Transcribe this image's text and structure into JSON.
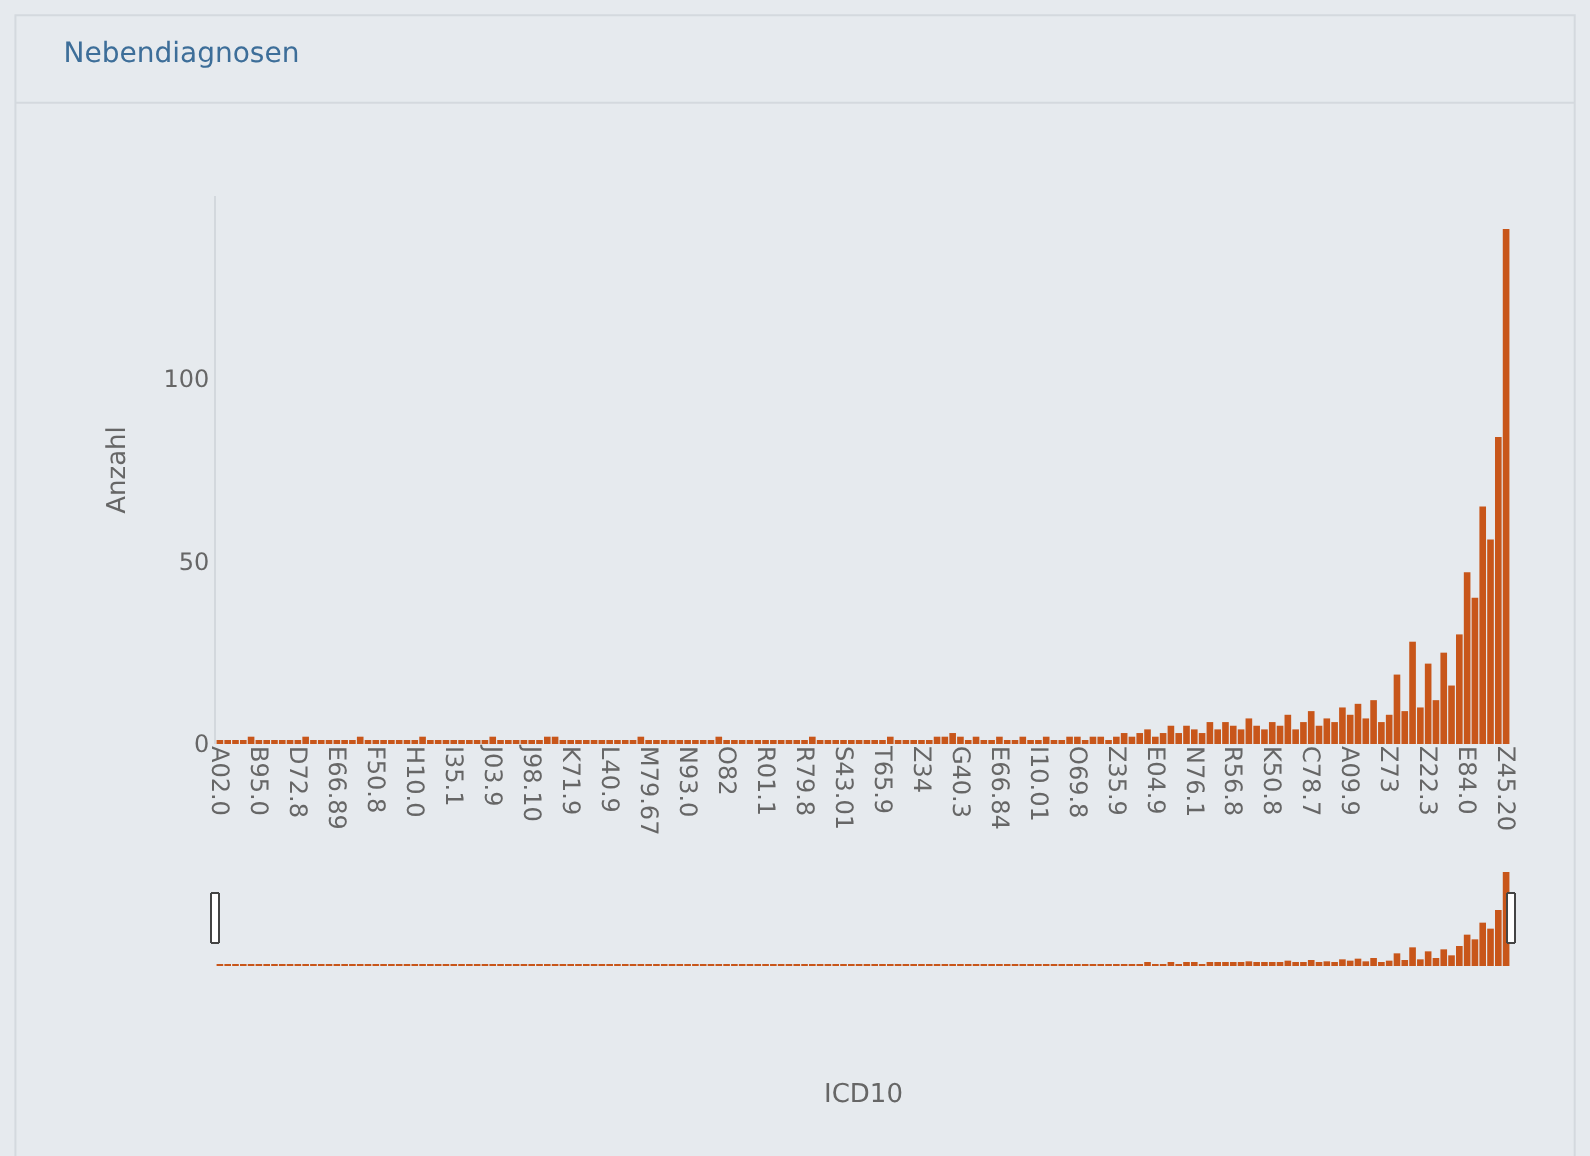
{
  "chart_data": {
    "type": "bar",
    "title": "Nebendiagnosen",
    "annotations": [
      "ICD10"
    ],
    "ylabel": "Anzahl",
    "categories": [
      "A02.0",
      null,
      null,
      null,
      null,
      "B95.0",
      null,
      null,
      null,
      null,
      "D72.8",
      null,
      null,
      null,
      null,
      "E66.89",
      null,
      null,
      null,
      null,
      "F50.8",
      null,
      null,
      null,
      null,
      "H10.0",
      null,
      null,
      null,
      null,
      "I35.1",
      null,
      null,
      null,
      null,
      "J03.9",
      null,
      null,
      null,
      null,
      "J98.10",
      null,
      null,
      null,
      null,
      "K71.9",
      null,
      null,
      null,
      null,
      "L40.9",
      null,
      null,
      null,
      null,
      "M79.67",
      null,
      null,
      null,
      null,
      "N93.0",
      null,
      null,
      null,
      null,
      "O82",
      null,
      null,
      null,
      null,
      "R01.1",
      null,
      null,
      null,
      null,
      "R79.8",
      null,
      null,
      null,
      null,
      "S43.01",
      null,
      null,
      null,
      null,
      "T65.9",
      null,
      null,
      null,
      null,
      "Z34",
      null,
      null,
      null,
      null,
      "G40.3",
      null,
      null,
      null,
      null,
      "E66.84",
      null,
      null,
      null,
      null,
      "I10.01",
      null,
      null,
      null,
      null,
      "O69.8",
      null,
      null,
      null,
      null,
      "Z35.9",
      null,
      null,
      null,
      null,
      "E04.9",
      null,
      null,
      null,
      null,
      "N76.1",
      null,
      null,
      null,
      null,
      "R56.8",
      null,
      null,
      null,
      null,
      "K50.8",
      null,
      null,
      null,
      null,
      "C78.7",
      null,
      null,
      null,
      null,
      "A09.9",
      null,
      null,
      null,
      null,
      "Z73",
      null,
      null,
      null,
      null,
      "Z22.3",
      null,
      null,
      null,
      null,
      "E84.0",
      null,
      null,
      null,
      null,
      "Z45.20"
    ],
    "values": [
      1,
      1,
      1,
      1,
      2,
      1,
      1,
      1,
      1,
      1,
      1,
      2,
      1,
      1,
      1,
      1,
      1,
      1,
      2,
      1,
      1,
      1,
      1,
      1,
      1,
      1,
      2,
      1,
      1,
      1,
      1,
      1,
      1,
      1,
      1,
      2,
      1,
      1,
      1,
      1,
      1,
      1,
      2,
      2,
      1,
      1,
      1,
      1,
      1,
      1,
      1,
      1,
      1,
      1,
      2,
      1,
      1,
      1,
      1,
      1,
      1,
      1,
      1,
      1,
      2,
      1,
      1,
      1,
      1,
      1,
      1,
      1,
      1,
      1,
      1,
      1,
      2,
      1,
      1,
      1,
      1,
      1,
      1,
      1,
      1,
      1,
      2,
      1,
      1,
      1,
      1,
      1,
      2,
      2,
      3,
      2,
      1,
      2,
      1,
      1,
      2,
      1,
      1,
      2,
      1,
      1,
      2,
      1,
      1,
      2,
      2,
      1,
      2,
      2,
      1,
      2,
      3,
      2,
      3,
      4,
      2,
      3,
      5,
      3,
      5,
      4,
      3,
      6,
      4,
      6,
      5,
      4,
      7,
      5,
      4,
      6,
      5,
      8,
      4,
      6,
      9,
      5,
      7,
      6,
      10,
      8,
      11,
      7,
      12,
      6,
      8,
      19,
      9,
      28,
      10,
      22,
      12,
      25,
      16,
      30,
      47,
      40,
      65,
      56,
      84,
      141
    ],
    "color": "#c8561a",
    "ylim": [
      0,
      150
    ],
    "yticks": [
      0,
      50,
      100
    ]
  }
}
